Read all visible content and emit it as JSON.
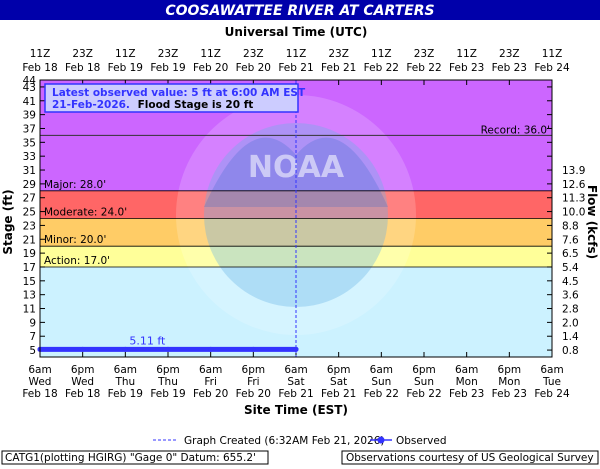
{
  "chart_data": {
    "type": "line",
    "title": "COOSAWATTEE RIVER AT CARTERS",
    "top_axis_title": "Universal Time (UTC)",
    "bottom_axis_title": "Site Time (EST)",
    "left_axis_title": "Stage (ft)",
    "right_axis_title": "Flow (kcfs)",
    "ylim": [
      4,
      44
    ],
    "x_hours_range": [
      0,
      144
    ],
    "top_ticks": [
      {
        "line1": "11Z",
        "line2": "Feb 18"
      },
      {
        "line1": "23Z",
        "line2": "Feb 18"
      },
      {
        "line1": "11Z",
        "line2": "Feb 19"
      },
      {
        "line1": "23Z",
        "line2": "Feb 19"
      },
      {
        "line1": "11Z",
        "line2": "Feb 20"
      },
      {
        "line1": "23Z",
        "line2": "Feb 20"
      },
      {
        "line1": "11Z",
        "line2": "Feb 21"
      },
      {
        "line1": "23Z",
        "line2": "Feb 21"
      },
      {
        "line1": "11Z",
        "line2": "Feb 22"
      },
      {
        "line1": "23Z",
        "line2": "Feb 22"
      },
      {
        "line1": "11Z",
        "line2": "Feb 23"
      },
      {
        "line1": "23Z",
        "line2": "Feb 23"
      },
      {
        "line1": "11Z",
        "line2": "Feb 24"
      }
    ],
    "bottom_ticks": [
      {
        "line1": "6am",
        "line2": "Wed",
        "line3": "Feb 18"
      },
      {
        "line1": "6pm",
        "line2": "Wed",
        "line3": "Feb 18"
      },
      {
        "line1": "6am",
        "line2": "Thu",
        "line3": "Feb 19"
      },
      {
        "line1": "6pm",
        "line2": "Thu",
        "line3": "Feb 19"
      },
      {
        "line1": "6am",
        "line2": "Fri",
        "line3": "Feb 20"
      },
      {
        "line1": "6pm",
        "line2": "Fri",
        "line3": "Feb 20"
      },
      {
        "line1": "6am",
        "line2": "Sat",
        "line3": "Feb 21"
      },
      {
        "line1": "6pm",
        "line2": "Sat",
        "line3": "Feb 21"
      },
      {
        "line1": "6am",
        "line2": "Sun",
        "line3": "Feb 22"
      },
      {
        "line1": "6pm",
        "line2": "Sun",
        "line3": "Feb 22"
      },
      {
        "line1": "6am",
        "line2": "Mon",
        "line3": "Feb 23"
      },
      {
        "line1": "6pm",
        "line2": "Mon",
        "line3": "Feb 23"
      },
      {
        "line1": "6am",
        "line2": "Tue",
        "line3": "Feb 24"
      }
    ],
    "stage_ticks": [
      5,
      7,
      9,
      11,
      13,
      15,
      17,
      19,
      21,
      23,
      25,
      27,
      29,
      31,
      33,
      35,
      37,
      39,
      41,
      43,
      44
    ],
    "flow_ticks": [
      {
        "stage": 5,
        "label": "0.8"
      },
      {
        "stage": 7,
        "label": "1.4"
      },
      {
        "stage": 9,
        "label": "2.0"
      },
      {
        "stage": 11,
        "label": "2.8"
      },
      {
        "stage": 13,
        "label": "3.6"
      },
      {
        "stage": 15,
        "label": "4.5"
      },
      {
        "stage": 17,
        "label": "5.4"
      },
      {
        "stage": 19,
        "label": "6.5"
      },
      {
        "stage": 21,
        "label": "7.6"
      },
      {
        "stage": 23,
        "label": "8.8"
      },
      {
        "stage": 25,
        "label": "10.0"
      },
      {
        "stage": 27,
        "label": "11.3"
      },
      {
        "stage": 29,
        "label": "12.6"
      },
      {
        "stage": 31,
        "label": "13.9"
      }
    ],
    "flood_bands": [
      {
        "name": "action",
        "label": "Action: 17.0'",
        "from": 17,
        "to": 20,
        "color": "#ffff99"
      },
      {
        "name": "minor",
        "label": "Minor: 20.0'",
        "from": 20,
        "to": 24,
        "color": "#ffcc66"
      },
      {
        "name": "moderate",
        "label": "Moderate: 24.0'",
        "from": 24,
        "to": 28,
        "color": "#ff6666"
      },
      {
        "name": "major",
        "label": "Major: 28.0'",
        "from": 28,
        "to": 44,
        "color": "#cc66ff"
      }
    ],
    "record": {
      "label": "Record: 36.0'",
      "value": 36
    },
    "observed": {
      "name": "Observed",
      "color": "#3333ff",
      "label": "5.11 ft",
      "x_hours": [
        0,
        12,
        24,
        36,
        48,
        60,
        72
      ],
      "values": [
        5.1,
        5.1,
        5.1,
        5.1,
        5.1,
        5.1,
        5.11
      ]
    },
    "graph_created_hour": 72,
    "legend": {
      "graph_created": "Graph Created (6:32AM Feb 21, 2026)",
      "observed": "Observed"
    },
    "annotation": {
      "line1": "Latest observed value: 5 ft at 6:00 AM EST",
      "line2_date": "21-Feb-2026.",
      "line2_flood": "Flood Stage is 20 ft"
    },
    "watermark_text": "NOAA",
    "footer_left": "CATG1(plotting HGIRG) \"Gage 0\" Datum: 655.2'",
    "footer_right": "Observations courtesy of US Geological Survey",
    "colors": {
      "title_bar": "#0000aa",
      "title_text": "#ffffff",
      "background_sky": "#ccf2ff",
      "observed": "#3333ff",
      "annotation_bg": "#ccccff",
      "annotation_border": "#3333ff"
    }
  }
}
